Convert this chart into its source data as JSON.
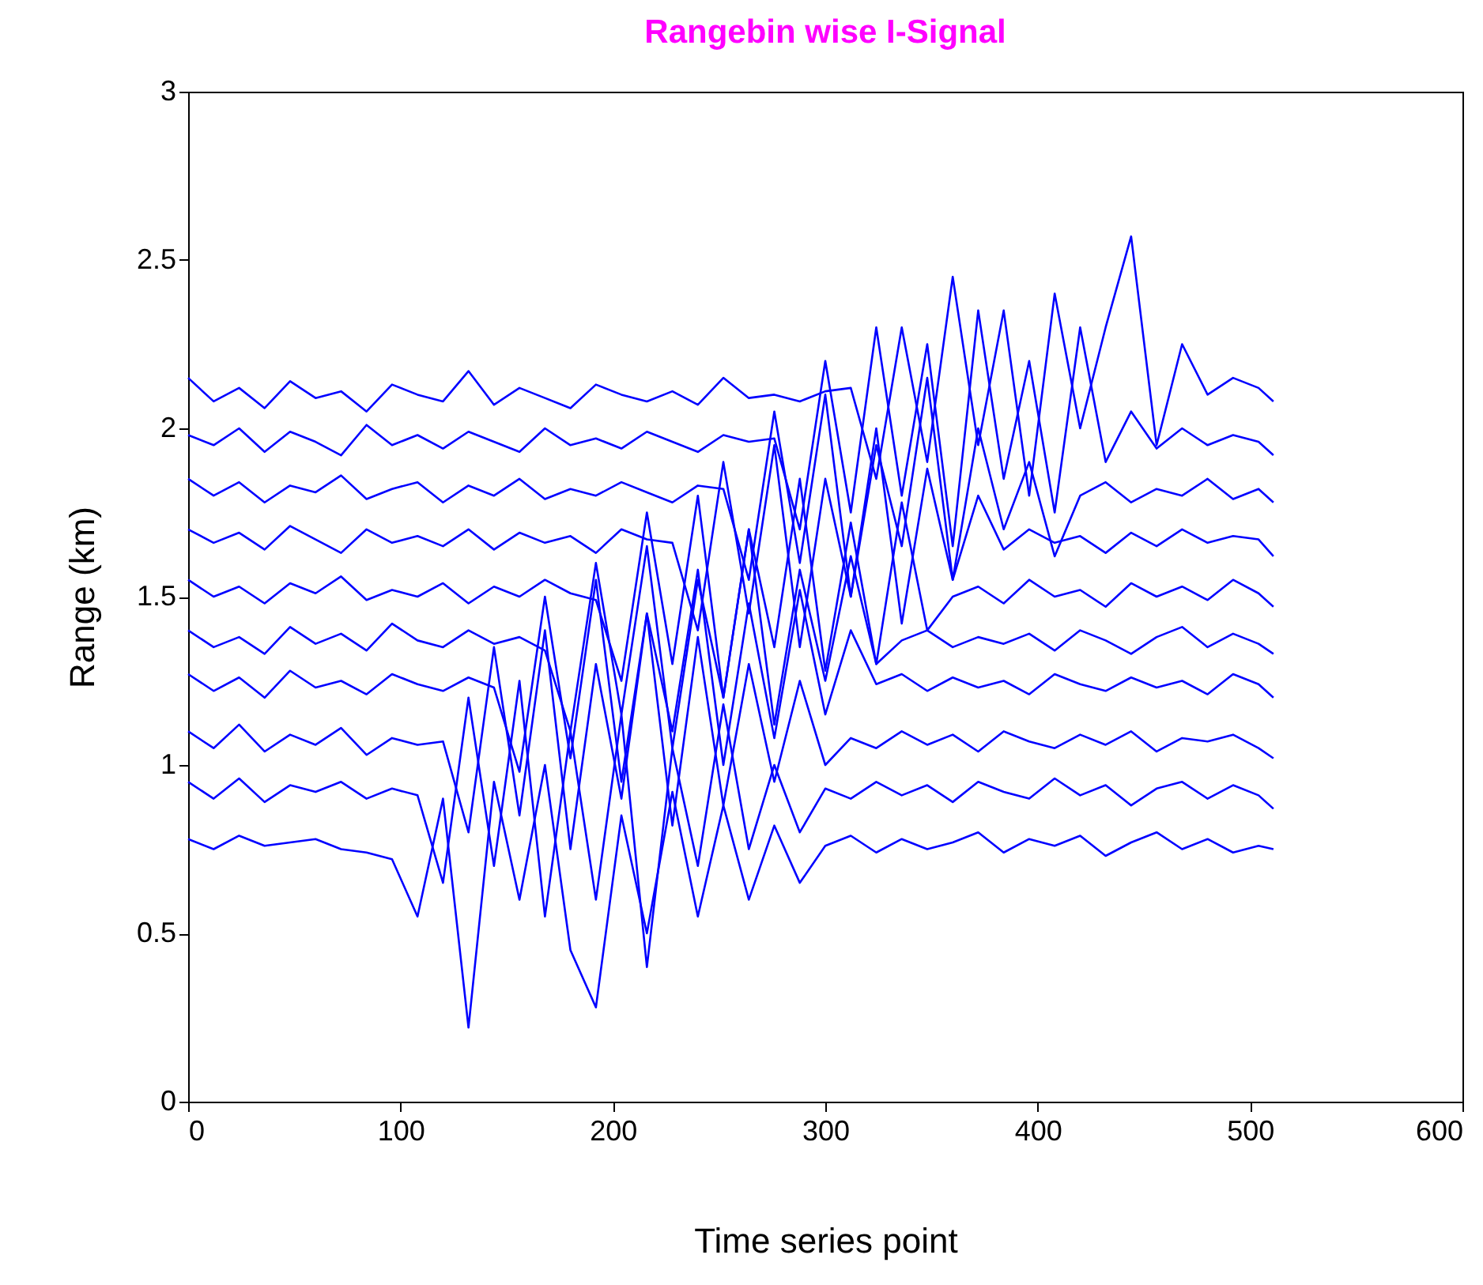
{
  "chart_data": {
    "type": "line",
    "title": "Rangebin wise I-Signal",
    "xlabel": "Time series point",
    "ylabel": "Range (km)",
    "x": [
      0,
      12,
      24,
      36,
      48,
      60,
      72,
      84,
      96,
      108,
      120,
      132,
      144,
      156,
      168,
      180,
      192,
      204,
      216,
      228,
      240,
      252,
      264,
      276,
      288,
      300,
      312,
      324,
      336,
      348,
      360,
      372,
      384,
      396,
      408,
      420,
      432,
      444,
      456,
      468,
      480,
      492,
      504,
      511
    ],
    "series": [
      {
        "color": "#0000ff",
        "values": [
          2.15,
          2.08,
          2.12,
          2.06,
          2.14,
          2.09,
          2.11,
          2.05,
          2.13,
          2.1,
          2.08,
          2.17,
          2.07,
          2.12,
          2.09,
          2.06,
          2.13,
          2.1,
          2.08,
          2.11,
          2.07,
          2.15,
          2.09,
          2.1,
          2.08,
          2.11,
          2.12,
          1.85,
          2.3,
          1.9,
          2.45,
          1.95,
          2.35,
          1.8,
          2.4,
          2.0,
          2.3,
          2.57,
          1.95,
          2.25,
          2.1,
          2.15,
          2.12,
          2.08
        ]
      },
      {
        "color": "#0000ff",
        "values": [
          1.98,
          1.95,
          2.0,
          1.93,
          1.99,
          1.96,
          1.92,
          2.01,
          1.95,
          1.98,
          1.94,
          1.99,
          1.96,
          1.93,
          2.0,
          1.95,
          1.97,
          1.94,
          1.99,
          1.96,
          1.93,
          1.98,
          1.96,
          1.97,
          1.7,
          2.2,
          1.75,
          2.3,
          1.8,
          2.25,
          1.65,
          2.35,
          1.85,
          2.2,
          1.75,
          2.3,
          1.9,
          2.05,
          1.94,
          2.0,
          1.95,
          1.98,
          1.96,
          1.92
        ]
      },
      {
        "color": "#0000ff",
        "values": [
          1.85,
          1.8,
          1.84,
          1.78,
          1.83,
          1.81,
          1.86,
          1.79,
          1.82,
          1.84,
          1.78,
          1.83,
          1.8,
          1.85,
          1.79,
          1.82,
          1.8,
          1.84,
          1.81,
          1.78,
          1.83,
          1.82,
          1.55,
          2.05,
          1.6,
          2.1,
          1.5,
          1.95,
          1.65,
          2.15,
          1.55,
          2.0,
          1.7,
          1.9,
          1.62,
          1.8,
          1.84,
          1.78,
          1.82,
          1.8,
          1.85,
          1.79,
          1.82,
          1.78
        ]
      },
      {
        "color": "#0000ff",
        "values": [
          1.7,
          1.66,
          1.69,
          1.64,
          1.71,
          1.67,
          1.63,
          1.7,
          1.66,
          1.68,
          1.65,
          1.7,
          1.64,
          1.69,
          1.66,
          1.68,
          1.63,
          1.7,
          1.67,
          1.66,
          1.4,
          1.9,
          1.45,
          1.95,
          1.35,
          1.85,
          1.5,
          2.0,
          1.42,
          1.88,
          1.55,
          1.8,
          1.64,
          1.7,
          1.66,
          1.68,
          1.63,
          1.69,
          1.65,
          1.7,
          1.66,
          1.68,
          1.67,
          1.62
        ]
      },
      {
        "color": "#0000ff",
        "values": [
          1.55,
          1.5,
          1.53,
          1.48,
          1.54,
          1.51,
          1.56,
          1.49,
          1.52,
          1.5,
          1.54,
          1.48,
          1.53,
          1.5,
          1.55,
          1.51,
          1.49,
          1.25,
          1.75,
          1.3,
          1.8,
          1.2,
          1.7,
          1.35,
          1.85,
          1.28,
          1.72,
          1.3,
          1.78,
          1.4,
          1.5,
          1.53,
          1.48,
          1.55,
          1.5,
          1.52,
          1.47,
          1.54,
          1.5,
          1.53,
          1.49,
          1.55,
          1.51,
          1.47
        ]
      },
      {
        "color": "#0000ff",
        "values": [
          1.4,
          1.35,
          1.38,
          1.33,
          1.41,
          1.36,
          1.39,
          1.34,
          1.42,
          1.37,
          1.35,
          1.4,
          1.36,
          1.38,
          1.34,
          1.1,
          1.6,
          1.15,
          1.65,
          1.05,
          1.55,
          1.2,
          1.7,
          1.12,
          1.58,
          1.25,
          1.62,
          1.3,
          1.37,
          1.4,
          1.35,
          1.38,
          1.36,
          1.39,
          1.34,
          1.4,
          1.37,
          1.33,
          1.38,
          1.41,
          1.35,
          1.39,
          1.36,
          1.33
        ]
      },
      {
        "color": "#0000ff",
        "values": [
          1.27,
          1.22,
          1.26,
          1.2,
          1.28,
          1.23,
          1.25,
          1.21,
          1.27,
          1.24,
          1.22,
          1.26,
          1.23,
          0.98,
          1.5,
          1.02,
          1.55,
          0.95,
          1.45,
          1.1,
          1.58,
          1.0,
          1.48,
          1.08,
          1.52,
          1.15,
          1.4,
          1.24,
          1.27,
          1.22,
          1.26,
          1.23,
          1.25,
          1.21,
          1.27,
          1.24,
          1.22,
          1.26,
          1.23,
          1.25,
          1.21,
          1.27,
          1.24,
          1.2
        ]
      },
      {
        "color": "#0000ff",
        "values": [
          1.1,
          1.05,
          1.12,
          1.04,
          1.09,
          1.06,
          1.11,
          1.03,
          1.08,
          1.06,
          1.07,
          0.8,
          1.35,
          0.85,
          1.4,
          0.75,
          1.3,
          0.9,
          1.45,
          0.82,
          1.38,
          0.88,
          1.3,
          0.95,
          1.25,
          1.0,
          1.08,
          1.05,
          1.1,
          1.06,
          1.09,
          1.04,
          1.1,
          1.07,
          1.05,
          1.09,
          1.06,
          1.1,
          1.04,
          1.08,
          1.07,
          1.09,
          1.05,
          1.02
        ]
      },
      {
        "color": "#0000ff",
        "values": [
          0.95,
          0.9,
          0.96,
          0.89,
          0.94,
          0.92,
          0.95,
          0.9,
          0.93,
          0.91,
          0.65,
          1.2,
          0.7,
          1.25,
          0.55,
          1.1,
          0.6,
          1.15,
          0.4,
          1.05,
          0.7,
          1.18,
          0.75,
          1.0,
          0.8,
          0.93,
          0.9,
          0.95,
          0.91,
          0.94,
          0.89,
          0.95,
          0.92,
          0.9,
          0.96,
          0.91,
          0.94,
          0.88,
          0.93,
          0.95,
          0.9,
          0.94,
          0.91,
          0.87
        ]
      },
      {
        "color": "#0000ff",
        "values": [
          0.78,
          0.75,
          0.79,
          0.76,
          0.77,
          0.78,
          0.75,
          0.74,
          0.72,
          0.55,
          0.9,
          0.22,
          0.95,
          0.6,
          1.0,
          0.45,
          0.28,
          0.85,
          0.5,
          0.92,
          0.55,
          0.88,
          0.6,
          0.82,
          0.65,
          0.76,
          0.79,
          0.74,
          0.78,
          0.75,
          0.77,
          0.8,
          0.74,
          0.78,
          0.76,
          0.79,
          0.73,
          0.77,
          0.8,
          0.75,
          0.78,
          0.74,
          0.76,
          0.75
        ]
      }
    ],
    "xlim": [
      0,
      600
    ],
    "xticks": [
      0,
      100,
      200,
      300,
      400,
      500,
      600
    ],
    "ylim": [
      0,
      3
    ],
    "yticks": [
      0,
      0.5,
      1,
      1.5,
      2,
      2.5,
      3
    ]
  }
}
